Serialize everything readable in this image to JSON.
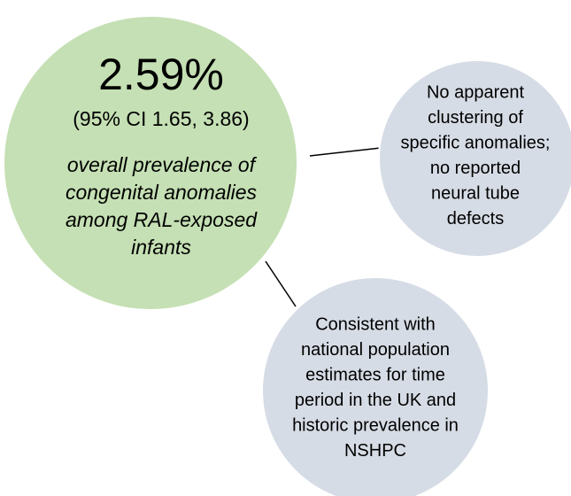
{
  "nodes": [
    {
      "headline": "2.59%",
      "subline": "(95% CI 1.65, 3.86)",
      "lines": [
        "overall prevalence of",
        "congenital anomalies",
        "among RAL-exposed",
        "infants"
      ]
    },
    {
      "lines": [
        "No apparent",
        "clustering of",
        "specific anomalies;",
        "no reported",
        "neural tube",
        "defects"
      ]
    },
    {
      "lines": [
        "Consistent with",
        "national population",
        "estimates for time",
        "period in the UK and",
        "historic prevalence in",
        "NSHPC"
      ]
    }
  ]
}
